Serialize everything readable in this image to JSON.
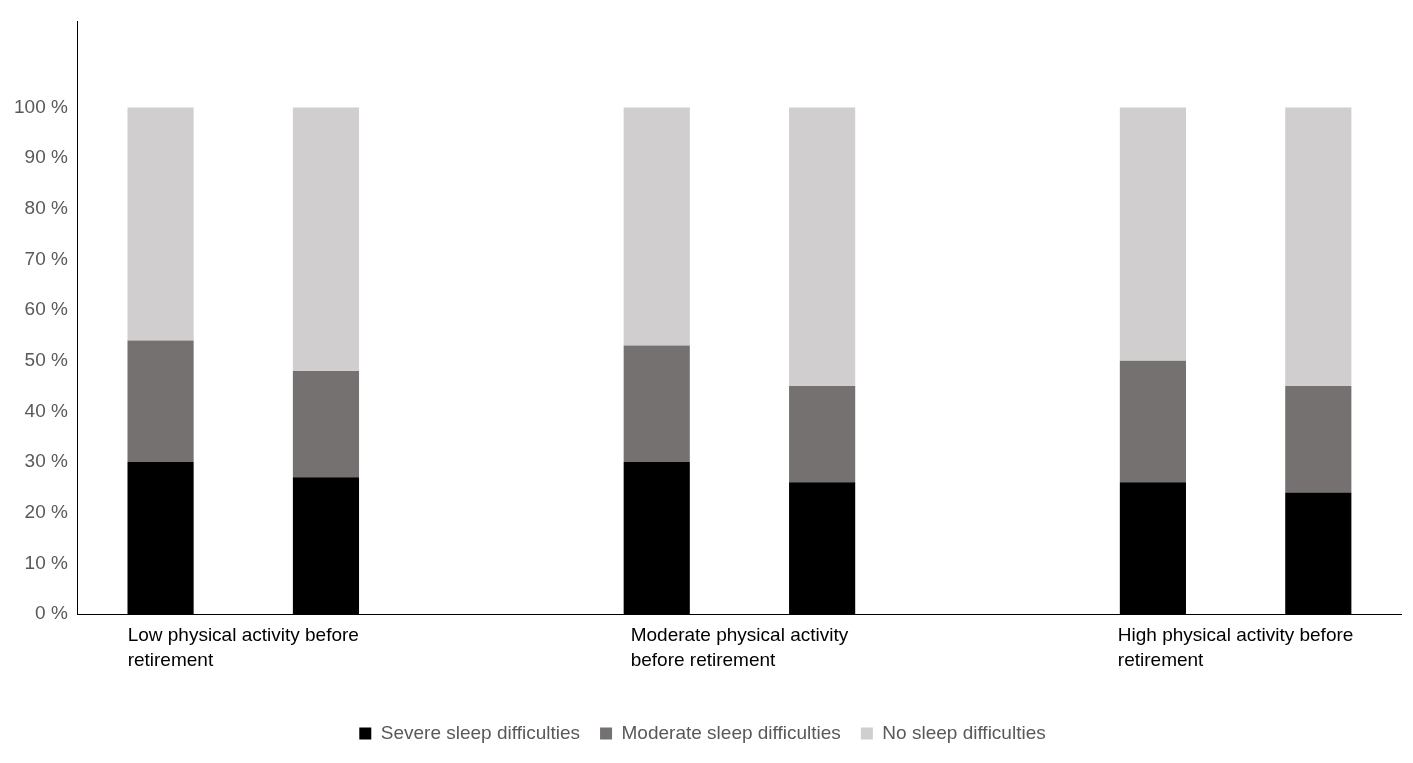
{
  "chart_data": {
    "type": "bar",
    "stacked": true,
    "legend": "bottom",
    "categories": [
      "Low physical activity before retirement",
      null,
      null,
      "Moderate physical activity before retirement",
      null,
      null,
      "High physical activity before retirement",
      null
    ],
    "series": [
      {
        "name": "Severe sleep difficulties",
        "color": "#000000",
        "values": [
          30,
          27,
          null,
          30,
          26,
          null,
          26,
          24
        ]
      },
      {
        "name": "Moderate sleep difficulties",
        "color": "#767171",
        "values": [
          24,
          21,
          null,
          23,
          19,
          null,
          24,
          21
        ]
      },
      {
        "name": "No sleep difficulties",
        "color": "#d0cece",
        "values": [
          46,
          52,
          null,
          47,
          55,
          null,
          50,
          55
        ]
      }
    ],
    "ylim": [
      0,
      117
    ],
    "yticks": [
      {
        "value": 0,
        "label": "0 %"
      },
      {
        "value": 10,
        "label": "10 %"
      },
      {
        "value": 20,
        "label": "20 %"
      },
      {
        "value": 30,
        "label": "30 %"
      },
      {
        "value": 40,
        "label": "40 %"
      },
      {
        "value": 50,
        "label": "50 %"
      },
      {
        "value": 60,
        "label": "60 %"
      },
      {
        "value": 70,
        "label": "70 %"
      },
      {
        "value": 80,
        "label": "80 %"
      },
      {
        "value": 90,
        "label": "90 %"
      },
      {
        "value": 100,
        "label": "100 %"
      }
    ]
  }
}
